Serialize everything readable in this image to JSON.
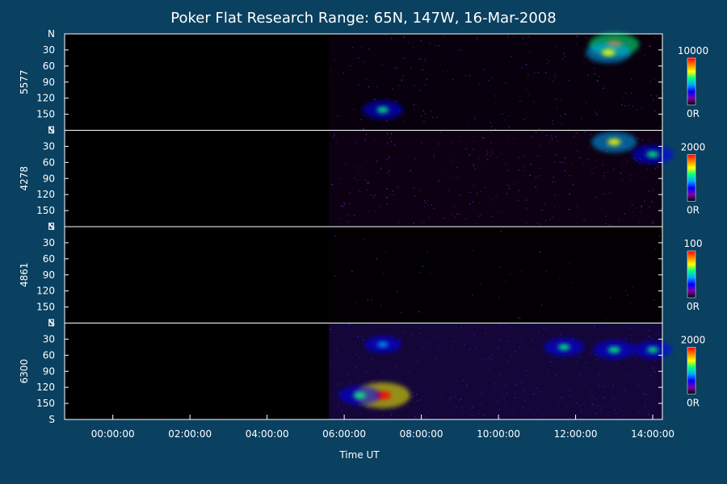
{
  "chart_data": {
    "type": "heatmap",
    "title": "Poker Flat Research Range: 65N, 147W, 16-Mar-2008",
    "xlabel": "Time UT",
    "x_ticks": [
      "00:00:00",
      "02:00:00",
      "04:00:00",
      "06:00:00",
      "08:00:00",
      "10:00:00",
      "12:00:00",
      "14:00:00"
    ],
    "xlim_hours": [
      -1.25,
      14.25
    ],
    "data_start_hour": 5.6,
    "y_ticks": [
      "N",
      "30",
      "60",
      "90",
      "120",
      "150",
      "S"
    ],
    "ylim": [
      0,
      180
    ],
    "colormap": [
      "#000000",
      "#7a00a8",
      "#0000ff",
      "#00a8ff",
      "#00ff80",
      "#ffff00",
      "#ff8000",
      "#ff0000"
    ],
    "panels": [
      {
        "name": "5577",
        "scale_max": "10000",
        "scale_min": "0R",
        "base_level": 0.2,
        "features": [
          {
            "t": 7.0,
            "angle": 142,
            "intensity": 0.55
          },
          {
            "t": 13.0,
            "angle": 20,
            "intensity": 0.85
          },
          {
            "t": 12.85,
            "angle": 35,
            "intensity": 0.7
          }
        ]
      },
      {
        "name": "4278",
        "scale_max": "2000",
        "scale_min": "0R",
        "base_level": 0.3,
        "features": [
          {
            "t": 13.0,
            "angle": 22,
            "intensity": 0.7
          },
          {
            "t": 14.0,
            "angle": 45,
            "intensity": 0.6
          }
        ]
      },
      {
        "name": "4861",
        "scale_max": "100",
        "scale_min": "0R",
        "base_level": 0.05,
        "features": []
      },
      {
        "name": "6300",
        "scale_max": "2000",
        "scale_min": "0R",
        "base_level": 0.35,
        "features": [
          {
            "t": 7.0,
            "angle": 135,
            "intensity": 1.0
          },
          {
            "t": 6.4,
            "angle": 135,
            "intensity": 0.6
          },
          {
            "t": 11.7,
            "angle": 45,
            "intensity": 0.55
          },
          {
            "t": 13.0,
            "angle": 50,
            "intensity": 0.6
          },
          {
            "t": 14.0,
            "angle": 50,
            "intensity": 0.5
          },
          {
            "t": 7.0,
            "angle": 40,
            "intensity": 0.45
          }
        ]
      }
    ]
  }
}
